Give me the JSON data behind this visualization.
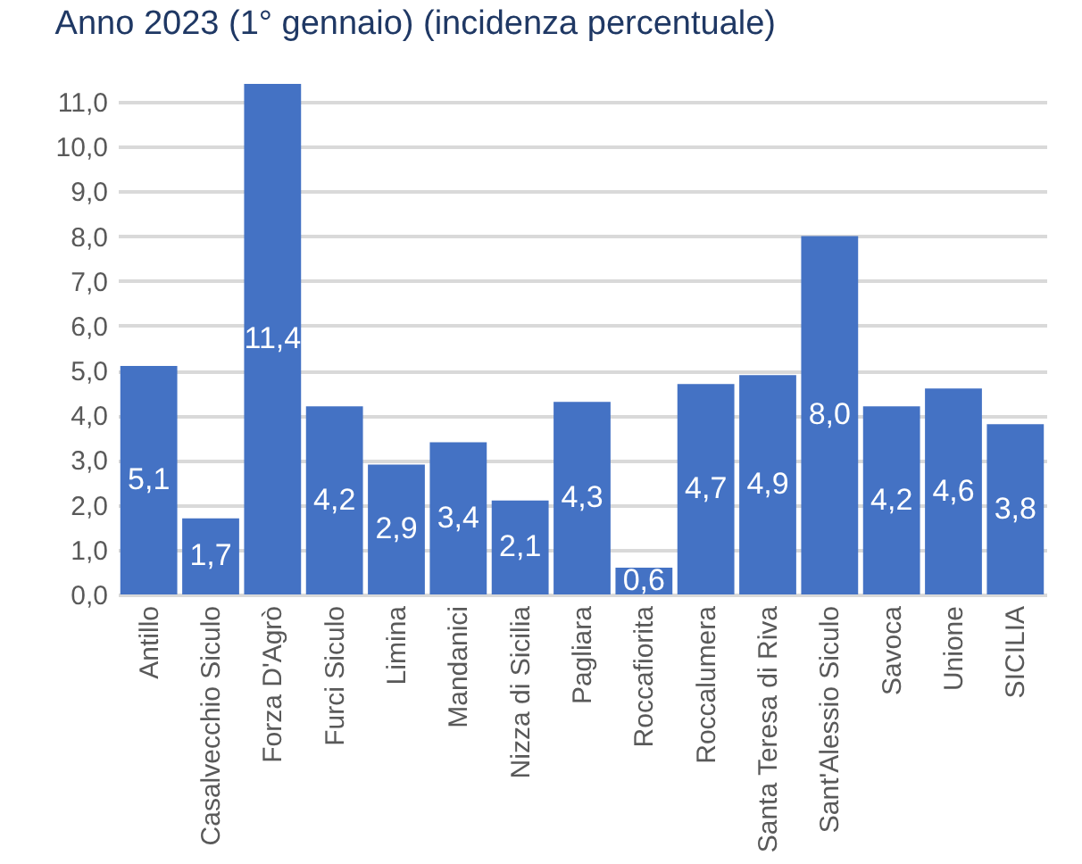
{
  "chart_data": {
    "type": "bar",
    "title": "Anno 2023 (1° gennaio) (incidenza percentuale)",
    "categories": [
      "Antillo",
      "Casalvecchio Siculo",
      "Forza D'Agrò",
      "Furci Siculo",
      "Limina",
      "Mandanici",
      "Nizza di Sicilia",
      "Pagliara",
      "Roccafiorita",
      "Roccalumera",
      "Santa Teresa di Riva",
      "Sant'Alessio Siculo",
      "Savoca",
      "Unione",
      "SICILIA"
    ],
    "values": [
      5.1,
      1.7,
      11.4,
      4.2,
      2.9,
      3.4,
      2.1,
      4.3,
      0.6,
      4.7,
      4.9,
      8.0,
      4.2,
      4.6,
      3.8
    ],
    "value_labels": [
      "5,1",
      "1,7",
      "11,4",
      "4,2",
      "2,9",
      "3,4",
      "2,1",
      "4,3",
      "0,6",
      "4,7",
      "4,9",
      "8,0",
      "4,2",
      "4,6",
      "3,8"
    ],
    "color": "#4472c4",
    "ylim": [
      0,
      11.4
    ],
    "yticks": [
      {
        "value": 0,
        "label": "0,0"
      },
      {
        "value": 1,
        "label": "1,0"
      },
      {
        "value": 2,
        "label": "2,0"
      },
      {
        "value": 3,
        "label": "3,0"
      },
      {
        "value": 4,
        "label": "4,0"
      },
      {
        "value": 5,
        "label": "5,0"
      },
      {
        "value": 6,
        "label": "6,0"
      },
      {
        "value": 7,
        "label": "7,0"
      },
      {
        "value": 8,
        "label": "8,0"
      },
      {
        "value": 9,
        "label": "9,0"
      },
      {
        "value": 10,
        "label": "10,0"
      },
      {
        "value": 11,
        "label": "11,0"
      }
    ],
    "grid": "y"
  }
}
